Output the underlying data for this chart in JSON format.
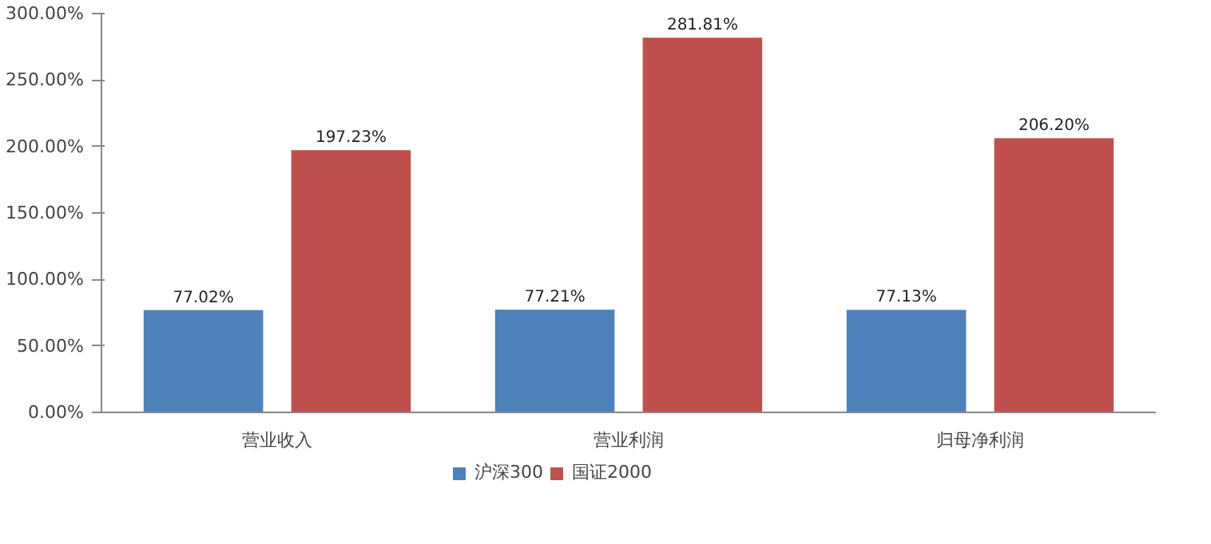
{
  "chart_data": {
    "type": "bar",
    "categories": [
      "营业收入",
      "营业利润",
      "归母净利润"
    ],
    "series": [
      {
        "name": "沪深300",
        "color": "#4f81bd",
        "values": [
          77.02,
          77.21,
          77.13
        ],
        "value_labels": [
          "77.02%",
          "77.21%",
          "77.13%"
        ]
      },
      {
        "name": "国证2000",
        "color": "#c0504d",
        "values": [
          197.23,
          281.81,
          206.2
        ],
        "value_labels": [
          "197.23%",
          "281.81%",
          "206.20%"
        ]
      }
    ],
    "ylim": [
      0,
      300
    ],
    "yticks": [
      {
        "value": 0,
        "label": "0.00%"
      },
      {
        "value": 50,
        "label": "50.00%"
      },
      {
        "value": 100,
        "label": "100.00%"
      },
      {
        "value": 150,
        "label": "150.00%"
      },
      {
        "value": 200,
        "label": "200.00%"
      },
      {
        "value": 250,
        "label": "250.00%"
      },
      {
        "value": 300,
        "label": "300.00%"
      }
    ],
    "grid": false,
    "legend": "bottom"
  }
}
